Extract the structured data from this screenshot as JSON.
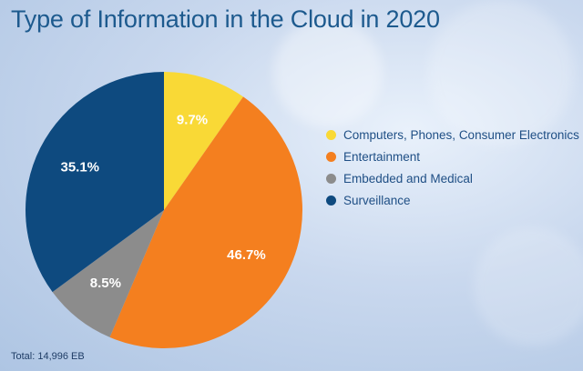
{
  "chart_data": {
    "type": "pie",
    "title": "Type of Information in the Cloud in 2020",
    "categories": [
      "Computers, Phones, Consumer Electronics",
      "Entertainment",
      "Embedded and Medical",
      "Surveillance"
    ],
    "values": [
      9.7,
      46.7,
      8.5,
      35.1
    ],
    "value_labels": [
      "9.7%",
      "46.7%",
      "8.5%",
      "35.1%"
    ],
    "colors": [
      "#f9d936",
      "#f47f1f",
      "#8c8c8c",
      "#0e4a7f"
    ],
    "legend_position": "right",
    "footnote": "Total: 14,996 EB"
  }
}
